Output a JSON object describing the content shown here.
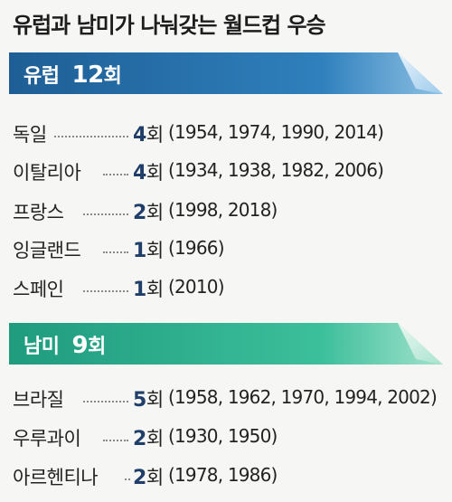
{
  "title": "유럽과 남미가 나눠갖는 월드컵 우승",
  "europe": {
    "label": "유럽",
    "count": "12",
    "unit": "회",
    "color_dark": "#1e5e95",
    "color_light": "#8fc1e4",
    "rows": [
      {
        "name": "독일",
        "count": "4",
        "unit": "회",
        "years": "(1954, 1974, 1990, 2014)"
      },
      {
        "name": "이탈리아",
        "count": "4",
        "unit": "회",
        "years": "(1934, 1938, 1982, 2006)"
      },
      {
        "name": "프랑스",
        "count": "2",
        "unit": "회",
        "years": "(1998, 2018)"
      },
      {
        "name": "잉글랜드",
        "count": "1",
        "unit": "회",
        "years": "(1966)"
      },
      {
        "name": "스페인",
        "count": "1",
        "unit": "회",
        "years": "(2010)"
      }
    ]
  },
  "south_america": {
    "label": "남미",
    "count": "9",
    "unit": "회",
    "color_dark": "#1f9b7e",
    "color_light": "#a4e2cd",
    "rows": [
      {
        "name": "브라질",
        "count": "5",
        "unit": "회",
        "years": "(1958, 1962, 1970, 1994, 2002)"
      },
      {
        "name": "우루과이",
        "count": "2",
        "unit": "회",
        "years": "(1930, 1950)"
      },
      {
        "name": "아르헨티나",
        "count": "2",
        "unit": "회",
        "years": "(1978, 1986)"
      }
    ]
  }
}
